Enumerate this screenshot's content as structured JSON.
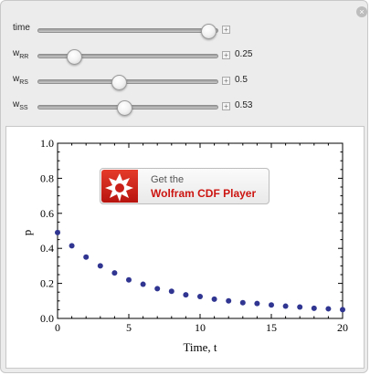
{
  "controls": [
    {
      "id": "time",
      "label": "time",
      "sub": "",
      "value": "",
      "fraction": 0.95
    },
    {
      "id": "wRR",
      "label": "w",
      "sub": "RR",
      "value": "0.25",
      "fraction": 0.2
    },
    {
      "id": "wRS",
      "label": "w",
      "sub": "RS",
      "value": "0.5",
      "fraction": 0.45
    },
    {
      "id": "wSS",
      "label": "w",
      "sub": "SS",
      "value": "0.53",
      "fraction": 0.48
    }
  ],
  "badge": {
    "line1": "Get the",
    "line2": "Wolfram CDF Player"
  },
  "chart_data": {
    "type": "scatter",
    "xlabel": "Time, t",
    "ylabel": "p",
    "xlim": [
      0,
      20
    ],
    "ylim": [
      0,
      1
    ],
    "x_ticks": [
      "0",
      "5",
      "10",
      "15",
      "20"
    ],
    "y_ticks": [
      "0.0",
      "0.2",
      "0.4",
      "0.6",
      "0.8",
      "1.0"
    ],
    "point_color": "#2f3590",
    "x": [
      0,
      1,
      2,
      3,
      4,
      5,
      6,
      7,
      8,
      9,
      10,
      11,
      12,
      13,
      14,
      15,
      16,
      17,
      18,
      19,
      20
    ],
    "y": [
      0.49,
      0.415,
      0.35,
      0.3,
      0.26,
      0.22,
      0.195,
      0.17,
      0.155,
      0.135,
      0.125,
      0.11,
      0.1,
      0.09,
      0.085,
      0.077,
      0.07,
      0.065,
      0.058,
      0.055,
      0.05
    ]
  }
}
